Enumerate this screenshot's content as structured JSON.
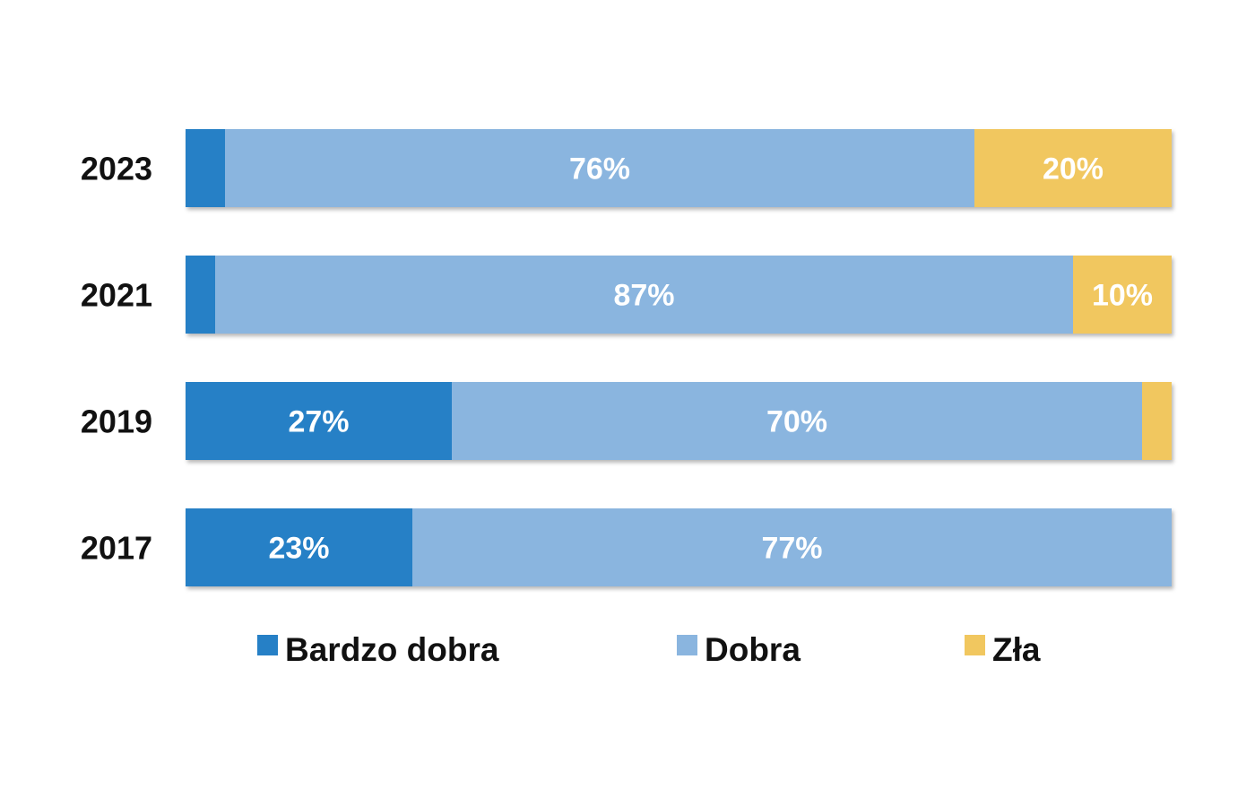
{
  "chart_data": {
    "type": "bar",
    "orientation": "horizontal",
    "stacked": true,
    "categories": [
      "2023",
      "2021",
      "2019",
      "2017"
    ],
    "series": [
      {
        "name": "Bardzo dobra",
        "color": "#2680c6",
        "values": [
          4,
          3,
          27,
          23
        ],
        "labels": [
          "",
          "",
          "27%",
          "23%"
        ]
      },
      {
        "name": "Dobra",
        "color": "#8ab5df",
        "values": [
          76,
          87,
          70,
          77
        ],
        "labels": [
          "76%",
          "87%",
          "70%",
          "77%"
        ]
      },
      {
        "name": "Zła",
        "color": "#f1c75f",
        "values": [
          20,
          10,
          3,
          0
        ],
        "labels": [
          "20%",
          "10%",
          "",
          ""
        ]
      }
    ],
    "xlim": [
      0,
      100
    ],
    "grid": false,
    "legend": "bottom"
  }
}
